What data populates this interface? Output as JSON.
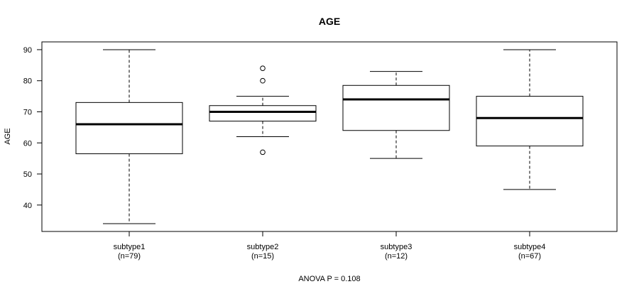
{
  "chart_data": {
    "type": "boxplot",
    "title": "AGE",
    "ylabel": "AGE",
    "footnote": "ANOVA P = 0.108",
    "ylim": [
      31.5,
      92.5
    ],
    "yticks": [
      40,
      50,
      60,
      70,
      80,
      90
    ],
    "colors": {
      "axis": "#000000",
      "box": "#000000",
      "background": "#ffffff"
    },
    "groups": [
      {
        "label": "subtype1",
        "n_label": "(n=79)",
        "whisker_low": 34,
        "q1": 56.5,
        "median": 66,
        "q3": 73,
        "whisker_high": 90,
        "outliers": []
      },
      {
        "label": "subtype2",
        "n_label": "(n=15)",
        "whisker_low": 62,
        "q1": 67,
        "median": 70,
        "q3": 72,
        "whisker_high": 75,
        "outliers": [
          57,
          80,
          84
        ]
      },
      {
        "label": "subtype3",
        "n_label": "(n=12)",
        "whisker_low": 55,
        "q1": 64,
        "median": 74,
        "q3": 78.5,
        "whisker_high": 83,
        "outliers": []
      },
      {
        "label": "subtype4",
        "n_label": "(n=67)",
        "whisker_low": 45,
        "q1": 59,
        "median": 68,
        "q3": 75,
        "whisker_high": 90,
        "outliers": []
      }
    ]
  }
}
